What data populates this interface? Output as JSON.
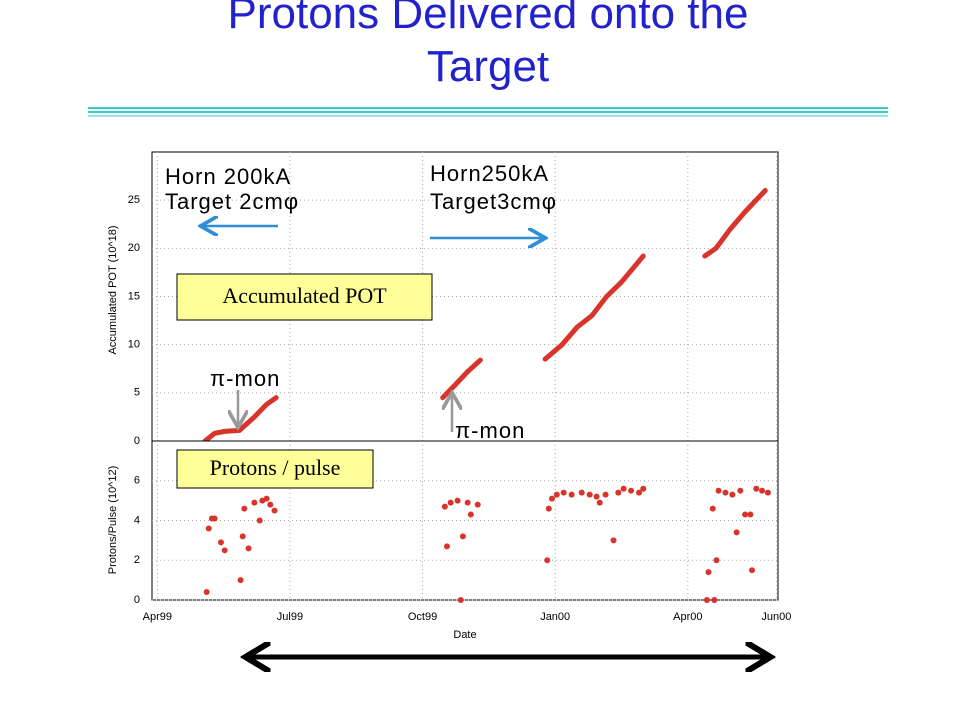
{
  "title": "Protons Delivered onto the Target",
  "chart_data": [
    {
      "type": "line",
      "ylabel": "Accumulated POT (10^18)",
      "panel_label": "Accumulated POT",
      "annotations": [
        "Horn 200kA",
        "Target 2cmφ",
        "Horn250kA",
        "Target3cmφ",
        "π-mon",
        "π-mon"
      ],
      "xlim": [
        1999.24,
        2000.42
      ],
      "ylim": [
        0,
        30
      ],
      "yticks": [
        0,
        5,
        10,
        15,
        20,
        25
      ],
      "grid": true,
      "series": [
        {
          "color": "#d9342b",
          "x": [
            1999.34,
            1999.358,
            1999.377,
            1999.405,
            1999.433,
            1999.456,
            1999.474,
            null,
            1999.788,
            1999.811,
            1999.835,
            1999.859,
            null,
            1999.981,
            2000.013,
            2000.041,
            2000.069,
            2000.097,
            2000.125,
            2000.166,
            null,
            2000.282,
            2000.303,
            2000.33,
            2000.358,
            2000.396
          ],
          "values": [
            0,
            0.8,
            1,
            1.1,
            2.5,
            3.8,
            4.5,
            null,
            4.5,
            5.8,
            7.2,
            8.4,
            null,
            8.5,
            10,
            11.8,
            13,
            15,
            16.5,
            19.2,
            null,
            19.2,
            20,
            22,
            23.8,
            26
          ]
        }
      ]
    },
    {
      "type": "scatter",
      "ylabel": "Protons/Pulse (10^12)",
      "xlabel": "Date",
      "panel_label": "Protons / pulse",
      "xlim": [
        1999.24,
        2000.42
      ],
      "ylim": [
        0,
        8
      ],
      "yticks": [
        0,
        2,
        4,
        6
      ],
      "grid": true,
      "xticks": [
        {
          "value": 1999.25,
          "label": "Apr99"
        },
        {
          "value": 1999.5,
          "label": "Jul99"
        },
        {
          "value": 1999.75,
          "label": "Oct99"
        },
        {
          "value": 2000.0,
          "label": "Jan00"
        },
        {
          "value": 2000.25,
          "label": "Apr00"
        },
        {
          "value": 2000.417,
          "label": "Jun00"
        }
      ],
      "series": [
        {
          "color": "#d9342b",
          "x": [
            1999.343,
            1999.347,
            1999.353,
            1999.358,
            1999.37,
            1999.377,
            1999.407,
            1999.411,
            1999.414,
            1999.422,
            1999.433,
            1999.443,
            1999.448,
            1999.456,
            1999.463,
            1999.471,
            1999.792,
            1999.796,
            1999.803,
            1999.816,
            1999.822,
            1999.826,
            1999.835,
            1999.841,
            1999.854,
            1999.985,
            1999.988,
            1999.994,
            2000.003,
            2000.016,
            2000.031,
            2000.05,
            2000.065,
            2000.078,
            2000.084,
            2000.095,
            2000.11,
            2000.119,
            2000.129,
            2000.143,
            2000.158,
            2000.166,
            2000.286,
            2000.289,
            2000.297,
            2000.3,
            2000.304,
            2000.308,
            2000.321,
            2000.334,
            2000.342,
            2000.349,
            2000.358,
            2000.368,
            2000.371,
            2000.379,
            2000.39,
            2000.401
          ],
          "values": [
            0.4,
            3.6,
            4.1,
            4.1,
            2.9,
            2.5,
            1.0,
            3.2,
            4.6,
            2.6,
            4.9,
            4.0,
            5.0,
            5.1,
            4.8,
            4.5,
            4.7,
            2.7,
            4.9,
            5.0,
            0,
            3.2,
            4.9,
            4.3,
            4.8,
            2.0,
            4.6,
            5.1,
            5.3,
            5.4,
            5.3,
            5.4,
            5.3,
            5.2,
            4.9,
            5.3,
            3.0,
            5.4,
            5.6,
            5.5,
            5.4,
            5.6,
            0,
            1.4,
            4.6,
            0,
            2.0,
            5.5,
            5.4,
            5.3,
            3.4,
            5.5,
            4.3,
            4.3,
            1.5,
            5.6,
            5.5,
            5.4
          ]
        }
      ]
    }
  ]
}
